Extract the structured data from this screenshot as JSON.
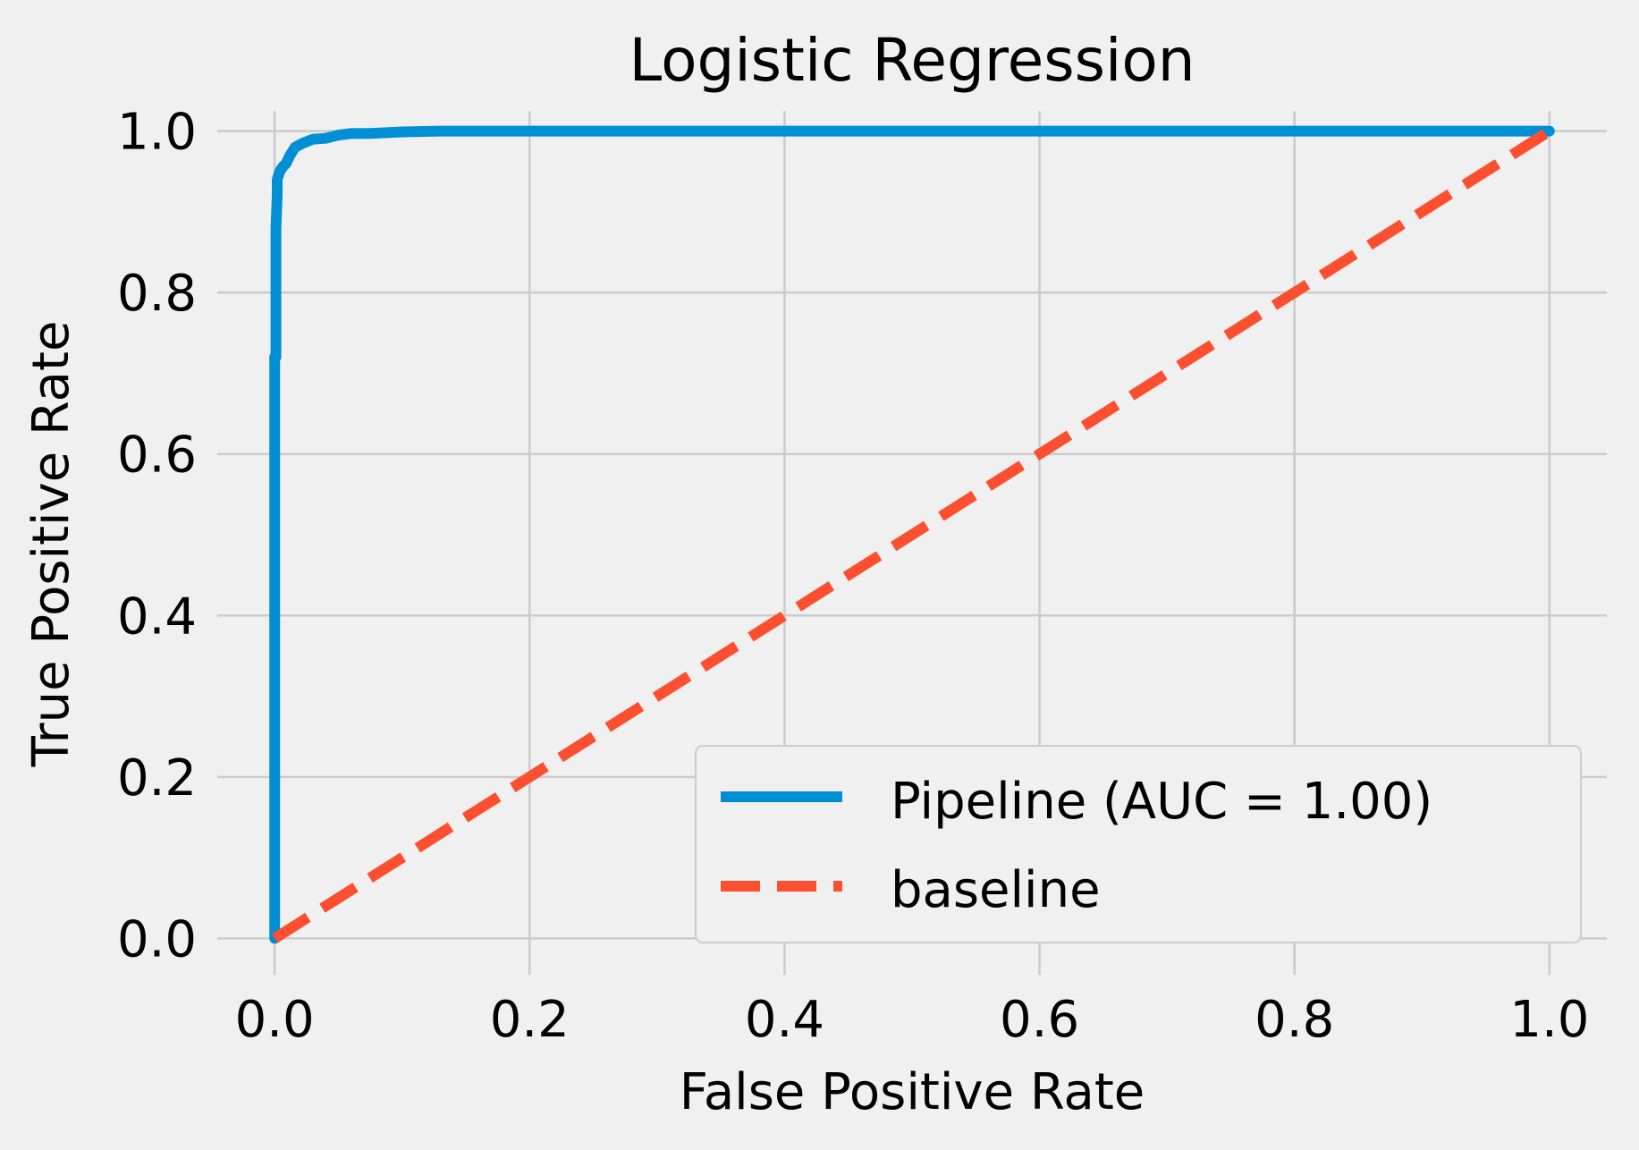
{
  "chart_data": {
    "type": "line",
    "title": "Logistic Regression",
    "xlabel": "False Positive Rate",
    "ylabel": "True Positive Rate",
    "xlim": [
      -0.045,
      1.045
    ],
    "ylim": [
      -0.045,
      1.045
    ],
    "xticks": [
      0.0,
      0.2,
      0.4,
      0.6,
      0.8,
      1.0
    ],
    "yticks": [
      0.0,
      0.2,
      0.4,
      0.6,
      0.8,
      1.0
    ],
    "xtick_labels": [
      "0.0",
      "0.2",
      "0.4",
      "0.6",
      "0.8",
      "1.0"
    ],
    "ytick_labels": [
      "0.0",
      "0.2",
      "0.4",
      "0.6",
      "0.8",
      "1.0"
    ],
    "grid": true,
    "legend_position": "lower-right",
    "series": [
      {
        "name": "Pipeline (AUC = 1.00)",
        "style": "solid",
        "color": "#008fd5",
        "x": [
          0.0,
          0.0,
          0.001,
          0.001,
          0.002,
          0.002,
          0.004,
          0.006,
          0.009,
          0.012,
          0.016,
          0.022,
          0.03,
          0.04,
          0.05,
          0.06,
          0.075,
          0.1,
          0.13,
          0.2,
          0.3,
          1.0
        ],
        "y": [
          0.0,
          0.72,
          0.72,
          0.88,
          0.92,
          0.94,
          0.95,
          0.955,
          0.96,
          0.97,
          0.98,
          0.985,
          0.99,
          0.991,
          0.995,
          0.997,
          0.997,
          0.999,
          1.0,
          1.0,
          1.0,
          1.0
        ]
      },
      {
        "name": "baseline",
        "style": "dashed",
        "color": "#fc4f30",
        "x": [
          0.0,
          1.0
        ],
        "y": [
          0.0,
          1.0
        ]
      }
    ]
  }
}
